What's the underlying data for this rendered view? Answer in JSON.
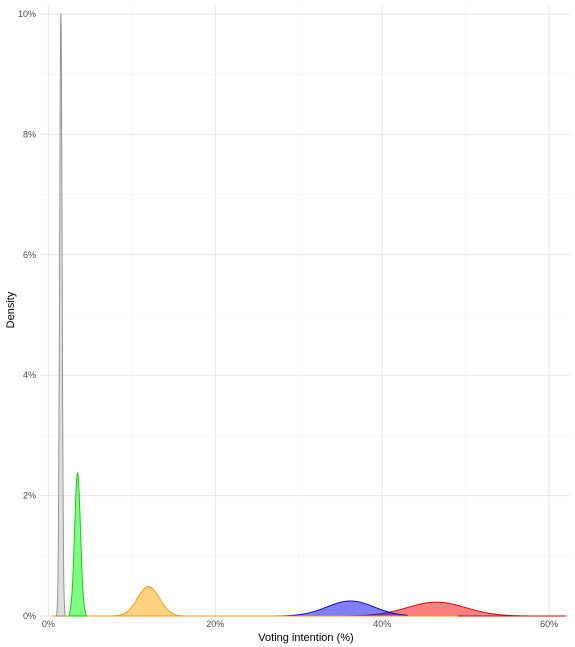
{
  "chart_data": {
    "type": "area",
    "title": "",
    "xlabel": "Voting intention (%)",
    "ylabel": "Density",
    "xlim": [
      -0.01,
      0.625
    ],
    "ylim": [
      0,
      0.1
    ],
    "x_ticks": [
      0,
      0.2,
      0.4,
      0.6
    ],
    "x_tick_labels": [
      "0%",
      "20%",
      "40%",
      "60%"
    ],
    "y_ticks": [
      0,
      0.02,
      0.04,
      0.06,
      0.08,
      0.1
    ],
    "y_tick_labels": [
      "0%",
      "2%",
      "4%",
      "6%",
      "8%",
      "10%"
    ],
    "grid": true,
    "legend": "none",
    "series": [
      {
        "mean": 0.015,
        "sd": 0.0015,
        "peak": 0.1,
        "xmin": 0.01,
        "xmax": 0.02,
        "fill": "#bebebe",
        "stroke": "#8c8c8c"
      },
      {
        "mean": 0.035,
        "sd": 0.0035,
        "peak": 0.0238,
        "xmin": 0.025,
        "xmax": 0.045,
        "fill": "#00ff00",
        "stroke": "#00cd00"
      },
      {
        "mean": 0.12,
        "sd": 0.013,
        "peak": 0.0049,
        "xmin": 0.005,
        "xmax": 0.49,
        "fill": "#ffa500",
        "stroke": "#ee9a00"
      },
      {
        "mean": 0.362,
        "sd": 0.028,
        "peak": 0.0025,
        "xmin": 0.24,
        "xmax": 0.43,
        "fill": "#0000ff",
        "stroke": "#0000cd"
      },
      {
        "mean": 0.465,
        "sd": 0.035,
        "peak": 0.0023,
        "xmin": 0.3,
        "xmax": 0.62,
        "fill": "#ff0000",
        "stroke": "#cd0000"
      }
    ]
  }
}
